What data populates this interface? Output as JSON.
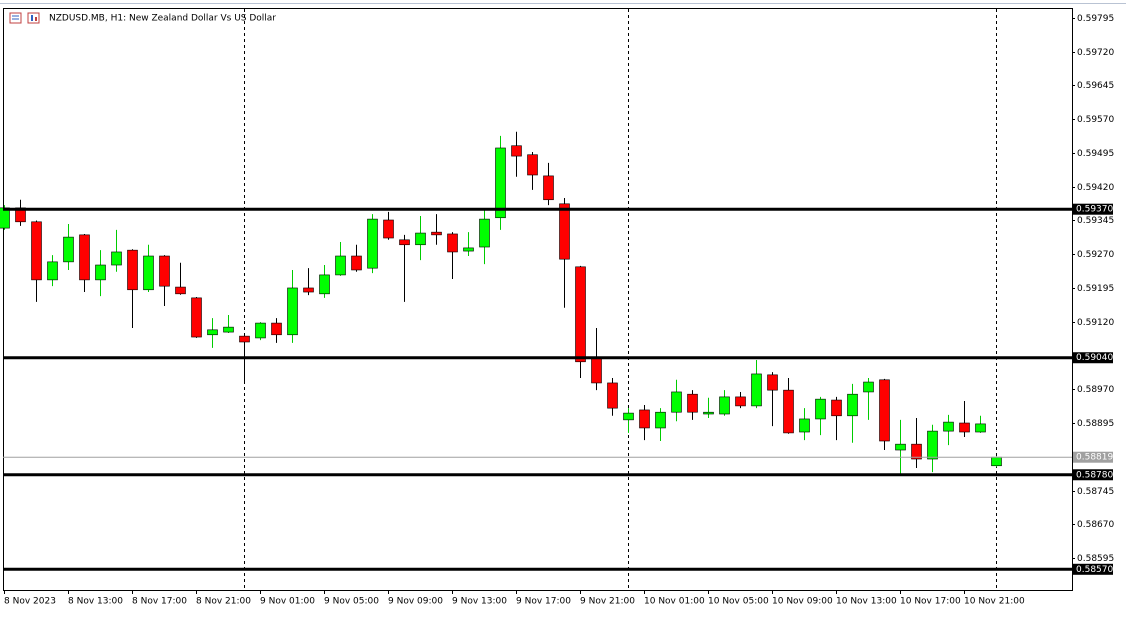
{
  "chart_data": {
    "type": "candlestick",
    "title": "NZDUSD.MB, H1:  New Zealand Dollar Vs US Dollar",
    "categories": [
      "8 Nov 2023",
      null,
      null,
      null,
      "8 Nov 13:00",
      null,
      null,
      null,
      "8 Nov 17:00",
      null,
      null,
      null,
      "8 Nov 21:00",
      null,
      null,
      null,
      "9 Nov 01:00",
      null,
      null,
      null,
      "9 Nov 05:00",
      null,
      null,
      null,
      "9 Nov 09:00",
      null,
      null,
      null,
      "9 Nov 13:00",
      null,
      null,
      null,
      "9 Nov 17:00",
      null,
      null,
      null,
      "9 Nov 21:00",
      null,
      null,
      null,
      "10 Nov 01:00",
      null,
      null,
      null,
      "10 Nov 05:00",
      null,
      null,
      null,
      "10 Nov 09:00",
      null,
      null,
      null,
      "10 Nov 13:00",
      null,
      null,
      null,
      "10 Nov 17:00",
      null,
      null,
      null,
      "10 Nov 21:00",
      null,
      null
    ],
    "open": [
      0.59328,
      0.59373,
      0.59342,
      0.59213,
      0.59253,
      0.59313,
      0.59213,
      0.59246,
      0.59279,
      0.59191,
      0.59266,
      0.59197,
      0.59173,
      0.59091,
      0.59097,
      0.59088,
      0.59084,
      0.59117,
      0.59091,
      0.59195,
      0.59182,
      0.59224,
      0.59266,
      0.59239,
      0.59346,
      0.59302,
      0.59291,
      0.59319,
      0.59315,
      0.59277,
      0.59286,
      0.59351,
      0.59511,
      0.59491,
      0.59444,
      0.59382,
      0.59242,
      0.59039,
      0.58984,
      0.58902,
      0.58924,
      0.58884,
      0.58919,
      0.58959,
      0.58915,
      0.58915,
      0.58953,
      0.58933,
      0.59002,
      0.58968,
      0.58875,
      0.58904,
      0.58946,
      0.58911,
      0.58964,
      0.58991,
      0.58835,
      0.58848,
      0.58815,
      0.58877,
      0.58895,
      0.58875,
      0.588
    ],
    "high": [
      0.59379,
      0.59391,
      0.59345,
      0.59268,
      0.59337,
      0.59315,
      0.59279,
      0.59324,
      0.59281,
      0.59291,
      0.59268,
      0.59251,
      0.59175,
      0.59128,
      0.59135,
      0.5909,
      0.59119,
      0.59128,
      0.59235,
      0.59239,
      0.59246,
      0.59297,
      0.59291,
      0.59359,
      0.59364,
      0.59313,
      0.59355,
      0.59359,
      0.59319,
      0.59319,
      0.59368,
      0.59533,
      0.59542,
      0.59497,
      0.59473,
      0.59395,
      0.59244,
      0.59106,
      0.58995,
      0.58928,
      0.58935,
      0.58928,
      0.58991,
      0.58968,
      0.58951,
      0.58968,
      0.58964,
      0.59035,
      0.59008,
      0.58995,
      0.58928,
      0.58953,
      0.58953,
      0.58982,
      0.58995,
      0.58993,
      0.58902,
      0.58906,
      0.58891,
      0.58913,
      0.58944,
      0.58911,
      0.58821
    ],
    "low": [
      0.59324,
      0.59333,
      0.59164,
      0.59199,
      0.59235,
      0.59186,
      0.59177,
      0.59231,
      0.59106,
      0.59186,
      0.59155,
      0.5918,
      0.59084,
      0.59062,
      0.59095,
      0.58986,
      0.59079,
      0.59073,
      0.59073,
      0.59179,
      0.59173,
      0.59222,
      0.59231,
      0.59228,
      0.59302,
      0.59164,
      0.59257,
      0.59291,
      0.59215,
      0.59266,
      0.59248,
      0.59324,
      0.59442,
      0.59413,
      0.59379,
      0.59151,
      0.58995,
      0.58968,
      0.58911,
      0.58873,
      0.58857,
      0.58855,
      0.58899,
      0.58902,
      0.58906,
      0.58911,
      0.58928,
      0.58928,
      0.58888,
      0.58871,
      0.58857,
      0.58868,
      0.58857,
      0.58851,
      0.58902,
      0.58835,
      0.58782,
      0.58795,
      0.58786,
      0.58846,
      0.58864,
      0.58873,
      0.58797
    ],
    "close": [
      0.59373,
      0.59342,
      0.59213,
      0.59253,
      0.59308,
      0.59213,
      0.59246,
      0.59275,
      0.59191,
      0.59266,
      0.59199,
      0.59182,
      0.59086,
      0.59102,
      0.59108,
      0.59075,
      0.59117,
      0.59091,
      0.59195,
      0.59186,
      0.59224,
      0.59266,
      0.59235,
      0.59348,
      0.59306,
      0.59291,
      0.59317,
      0.59313,
      0.59275,
      0.59284,
      0.59348,
      0.59506,
      0.59488,
      0.59446,
      0.59391,
      0.59259,
      0.59031,
      0.58984,
      0.58928,
      0.58917,
      0.58884,
      0.58919,
      0.58964,
      0.58919,
      0.58919,
      0.58953,
      0.58933,
      0.59004,
      0.58968,
      0.58873,
      0.58904,
      0.58948,
      0.58911,
      0.58959,
      0.58986,
      0.58855,
      0.58848,
      0.58815,
      0.58877,
      0.58897,
      0.58875,
      0.58893,
      0.58819
    ],
    "up_color": "#00ff00",
    "down_color": "#ff0000",
    "ylim": [
      0.58524,
      0.59817
    ],
    "yticks": [
      0.59795,
      {
        "value": 0.5972,
        "label": "0.59720"
      },
      0.59645,
      {
        "value": 0.5957,
        "label": "0.59570"
      },
      0.59495,
      {
        "value": 0.5942,
        "label": "0.59420"
      },
      0.59345,
      {
        "value": 0.5927,
        "label": "0.59270"
      },
      0.59195,
      {
        "value": 0.5912,
        "label": "0.59120"
      },
      {
        "value": 0.5897,
        "label": "0.58970"
      },
      0.58895,
      0.58745,
      {
        "value": 0.5867,
        "label": "0.58670"
      },
      0.58595
    ],
    "levels": [
      {
        "value": 0.5937,
        "label": "0.59370"
      },
      {
        "value": 0.5904,
        "label": "0.59040"
      },
      {
        "value": 0.5878,
        "label": "0.58780"
      },
      {
        "value": 0.5857,
        "label": "0.58570"
      }
    ],
    "current_price": 0.58819
  }
}
